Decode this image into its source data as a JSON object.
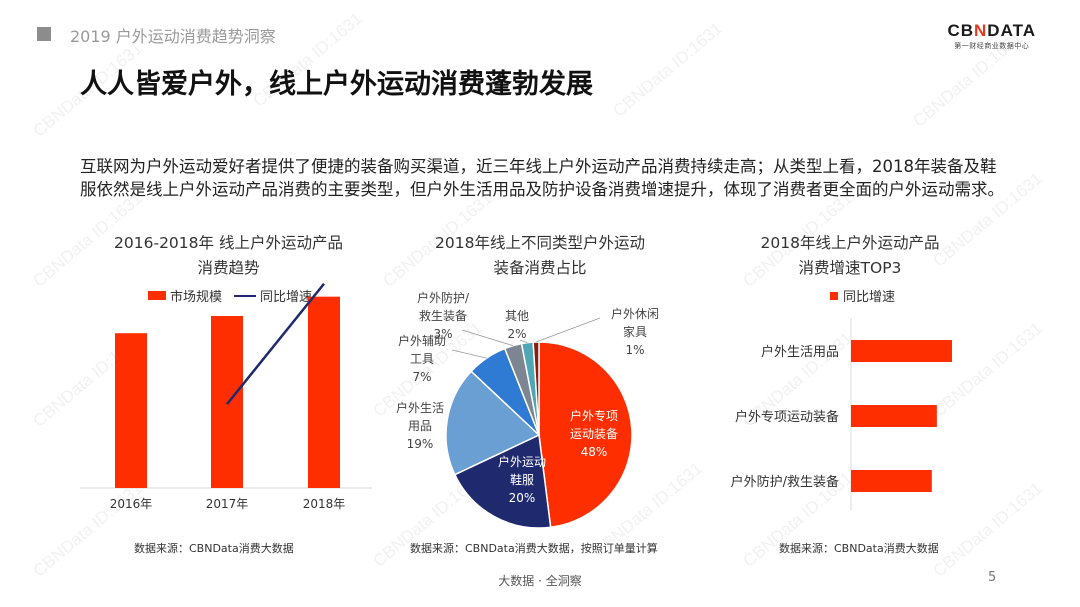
{
  "header": {
    "section": "2019 户外运动消费趋势洞察"
  },
  "logo": {
    "brand_a": "CB",
    "brand_x": "N",
    "brand_b": "DATA",
    "tagline": "第一财经商业数据中心"
  },
  "title": "人人皆爱户外，线上户外运动消费蓬勃发展",
  "summary": "互联网为户外运动爱好者提供了便捷的装备购买渠道，近三年线上户外运动产品消费持续走高；从类型上看，2018年装备及鞋服依然是线上户外运动产品消费的主要类型，但户外生活用品及防护设备消费增速提升，体现了消费者更全面的户外运动需求。",
  "watermark": "CBNData ID:1631",
  "colors": {
    "red": "#fe2e00",
    "navy": "#1f2a6e",
    "pie_light": "#6a9fd4",
    "pie_mid": "#2f7ad2",
    "pie_gray": "#7d8593",
    "pie_teal": "#4fa7b5",
    "pie_dark": "#8b1a10"
  },
  "chart_data": [
    {
      "type": "bar",
      "title_line1": "2016-2018年 线上户外运动产品",
      "title_line2": "消费趋势",
      "categories": [
        "2016年",
        "2017年",
        "2018年"
      ],
      "series": [
        {
          "name": "市场规模",
          "kind": "bar",
          "values": [
            0.72,
            0.8,
            0.89
          ]
        },
        {
          "name": "同比增速",
          "kind": "line",
          "values": [
            null,
            0.39,
            0.95
          ]
        }
      ],
      "axes": "no numeric axis labels shown"
    },
    {
      "type": "pie",
      "title_line1": "2018年线上不同类型户外运动",
      "title_line2": "装备消费占比",
      "slices": [
        {
          "label": "户外专项运动装备",
          "value": 48,
          "display": "48%"
        },
        {
          "label": "户外运动鞋服",
          "value": 20,
          "display": "20%"
        },
        {
          "label": "户外生活用品",
          "value": 19,
          "display": "19%"
        },
        {
          "label": "户外辅助工具",
          "value": 7,
          "display": "7%"
        },
        {
          "label": "户外防护/救生装备",
          "value": 3,
          "display": "3%"
        },
        {
          "label": "其他",
          "value": 2,
          "display": "2%"
        },
        {
          "label": "户外休闲家具",
          "value": 1,
          "display": "1%"
        }
      ],
      "label_lines": {
        "s0": [
          "户外专项",
          "运动装备",
          "48%"
        ],
        "s1": [
          "户外运动",
          "鞋服",
          "20%"
        ],
        "s2": [
          "户外生活",
          "用品",
          "19%"
        ],
        "s3": [
          "户外辅助",
          "工具",
          "7%"
        ],
        "s4": [
          "户外防护/",
          "救生装备",
          "3%"
        ],
        "s5": [
          "其他",
          "2%"
        ],
        "s6": [
          "户外休闲",
          "家具",
          "1%"
        ]
      }
    },
    {
      "type": "bar",
      "orientation": "horizontal",
      "title_line1": "2018年线上户外运动产品",
      "title_line2": "消费增速TOP3",
      "categories": [
        "户外生活用品",
        "户外专项运动装备",
        "户外防护/救生装备"
      ],
      "series": [
        {
          "name": "同比增速",
          "values": [
            1.0,
            0.85,
            0.8
          ]
        }
      ]
    }
  ],
  "sources": {
    "c1": "数据来源：CBNData消费大数据",
    "c2": "数据来源：CBNData消费大数据，按照订单量计算",
    "c3": "数据来源：CBNData消费大数据"
  },
  "footer": "大数据 · 全洞察",
  "page_number": "5"
}
